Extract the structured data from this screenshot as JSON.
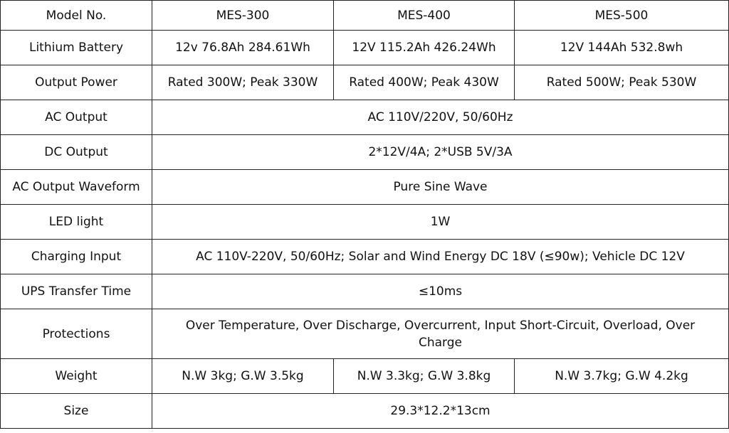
{
  "models": [
    "MES-300",
    "MES-400",
    "MES-500"
  ],
  "header_label": "Model No.",
  "rows": {
    "battery": {
      "label": "Lithium Battery",
      "values": [
        "12v 76.8Ah 284.61Wh",
        "12V 115.2Ah 426.24Wh",
        "12V 144Ah 532.8wh"
      ]
    },
    "output_power": {
      "label": "Output Power",
      "values": [
        "Rated 300W; Peak 330W",
        "Rated 400W; Peak 430W",
        "Rated 500W; Peak 530W"
      ]
    },
    "ac_output": {
      "label": "AC Output",
      "value": "AC 110V/220V, 50/60Hz"
    },
    "dc_output": {
      "label": "DC Output",
      "value": "2*12V/4A; 2*USB 5V/3A"
    },
    "waveform": {
      "label": "AC Output Waveform",
      "value": "Pure Sine Wave"
    },
    "led": {
      "label": "LED light",
      "value": "1W"
    },
    "charging": {
      "label": "Charging Input",
      "value": "AC 110V-220V, 50/60Hz; Solar and Wind Energy DC 18V (≤90w); Vehicle DC 12V"
    },
    "ups": {
      "label": "UPS Transfer Time",
      "value": "≤10ms"
    },
    "protections": {
      "label": "Protections",
      "value": "Over Temperature, Over Discharge, Overcurrent, Input Short-Circuit, Overload, Over Charge"
    },
    "weight": {
      "label": "Weight",
      "values": [
        "N.W 3kg; G.W 3.5kg",
        "N.W 3.3kg; G.W 3.8kg",
        "N.W 3.7kg; G.W 4.2kg"
      ]
    },
    "size": {
      "label": "Size",
      "value": "29.3*12.2*13cm"
    }
  }
}
